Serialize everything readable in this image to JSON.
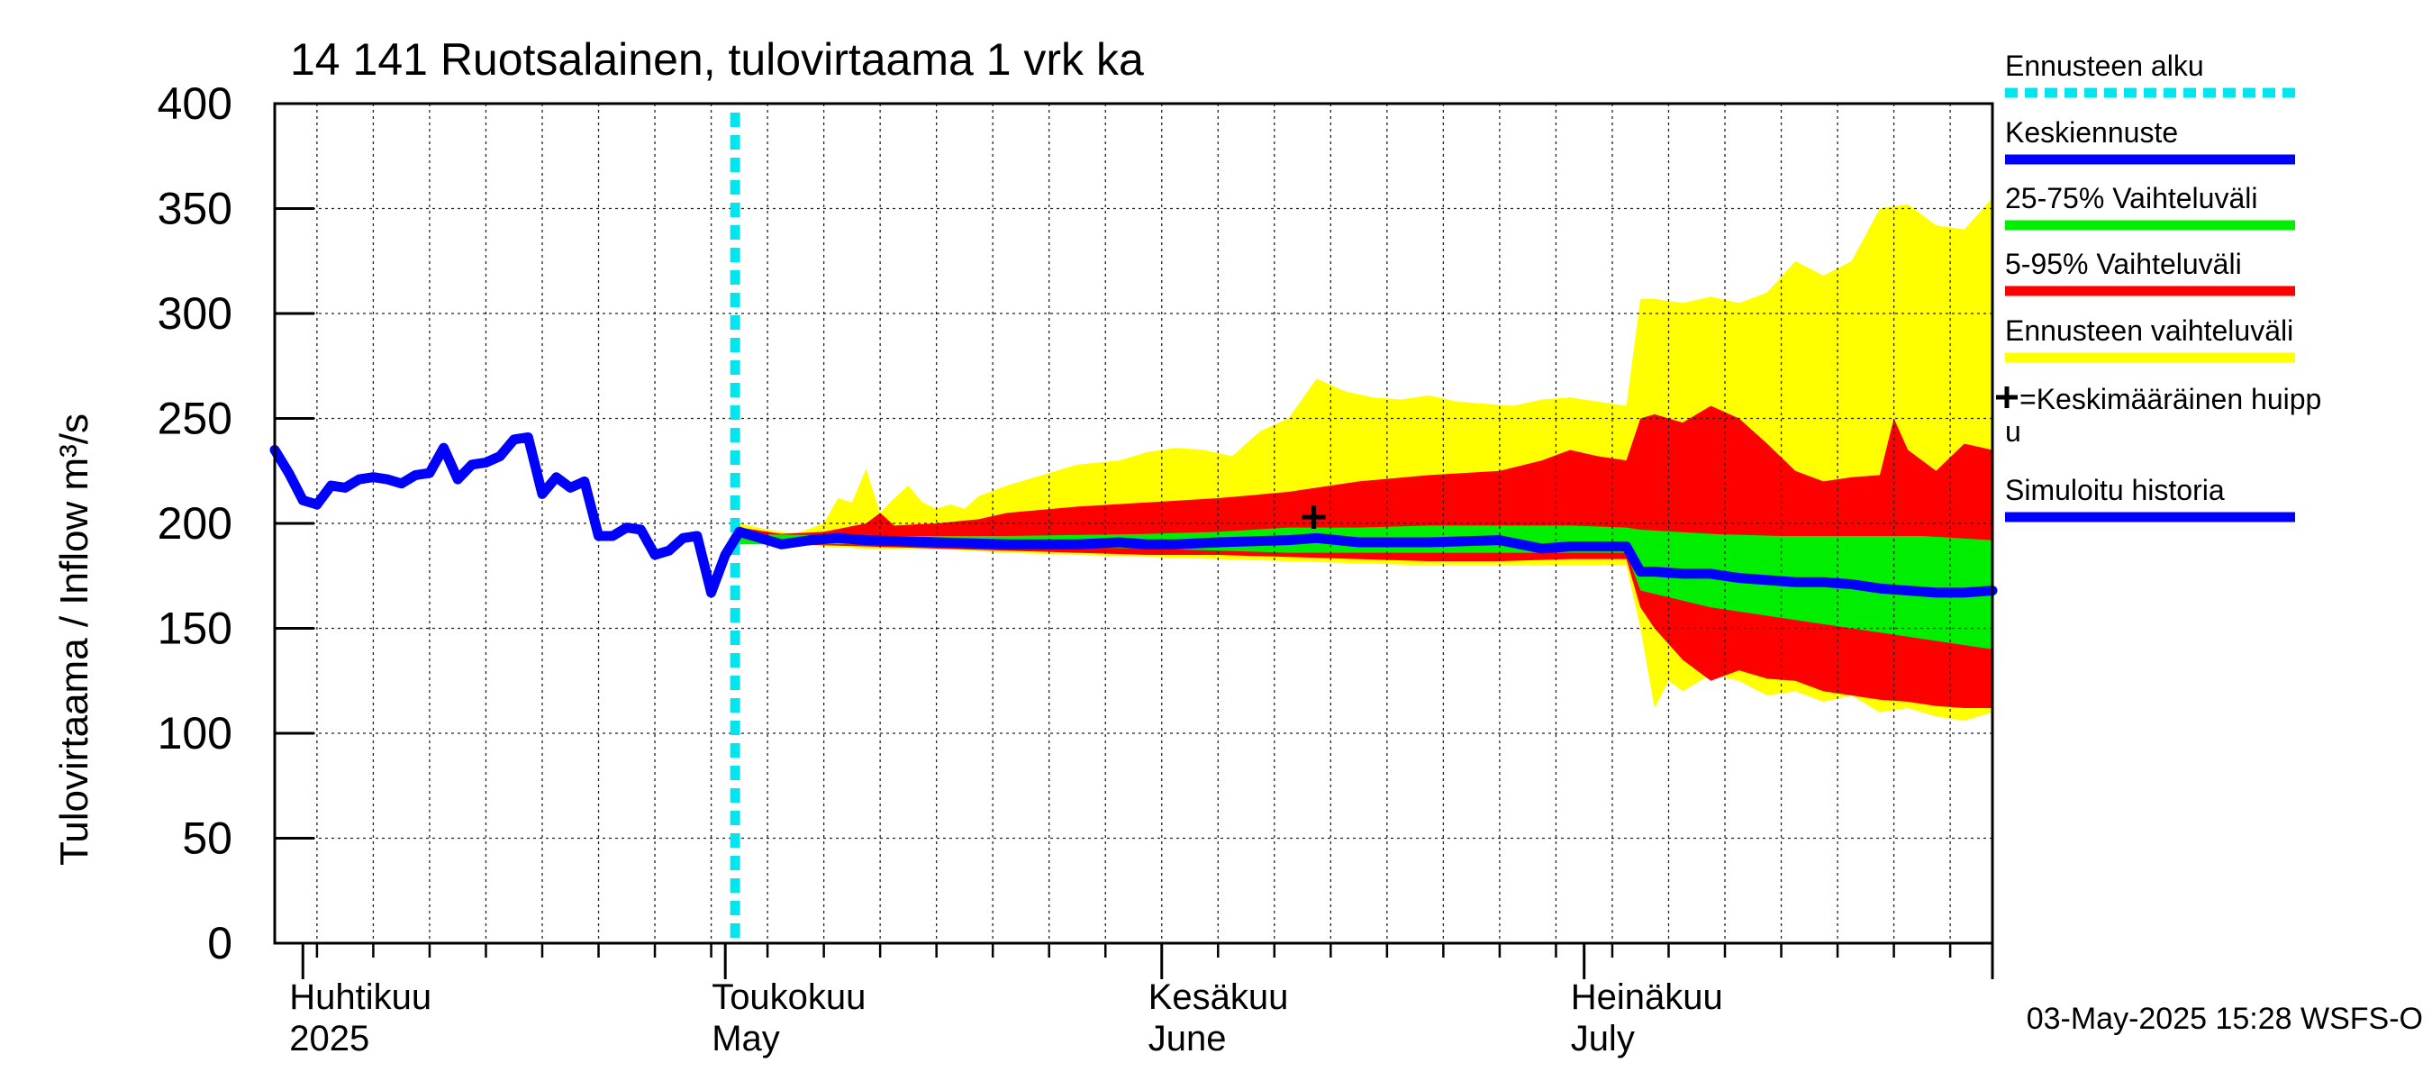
{
  "chart_data": {
    "type": "area",
    "title": "14 141 Ruotsalainen, tulovirtaama 1 vrk ka",
    "ylabel": "Tulovirtaama / Inflow    m³/s",
    "ylim": [
      0,
      400
    ],
    "yticks": [
      0,
      50,
      100,
      150,
      200,
      250,
      300,
      350,
      400
    ],
    "x_unit": "day index (0 = 1 April 2025)",
    "xlim": [
      -2,
      120
    ],
    "grid": true,
    "month_labels": [
      {
        "fi": "Huhtikuu",
        "en": "2025",
        "day": 0
      },
      {
        "fi": "Toukokuu",
        "en": "May",
        "day": 30
      },
      {
        "fi": "Kesäkuu",
        "en": "June",
        "day": 61
      },
      {
        "fi": "Heinäkuu",
        "en": "July",
        "day": 91
      }
    ],
    "month_boundaries": [
      0,
      30,
      61,
      91,
      120
    ],
    "forecast_start_day": 30.7,
    "legend_position": "right",
    "legend": [
      {
        "label": "Ennusteen alku",
        "color": "#00e5ee",
        "style": "dotted"
      },
      {
        "label": "Keskiennuste",
        "color": "#0000ff",
        "style": "solid"
      },
      {
        "label": "25-75% Vaihteluväli",
        "color": "#00ee00",
        "style": "solid"
      },
      {
        "label": "5-95% Vaihteluväli",
        "color": "#ff0000",
        "style": "solid"
      },
      {
        "label": "Ennusteen vaihteluväli",
        "color": "#ffff00",
        "style": "solid"
      },
      {
        "label": "=Keskimääräinen huipp",
        "label2": "u",
        "marker": "plus"
      },
      {
        "label": "Simuloitu historia",
        "color": "#0000ff",
        "style": "solid"
      }
    ],
    "mean_peak": {
      "day": 71.8,
      "value": 203
    },
    "series": [
      {
        "name": "Simuloitu historia",
        "color": "#0000ff",
        "x": [
          -2,
          -1,
          0,
          1,
          2,
          3,
          4,
          5,
          6,
          7,
          8,
          9,
          10,
          11,
          12,
          13,
          14,
          15,
          16,
          17,
          18,
          19,
          20,
          21,
          22,
          23,
          24,
          25,
          26,
          27,
          28,
          29,
          30,
          31
        ],
        "y": [
          235,
          224,
          211,
          209,
          218,
          217,
          221,
          222,
          221,
          219,
          223,
          224,
          236,
          221,
          228,
          229,
          232,
          240,
          241,
          214,
          222,
          217,
          220,
          194,
          194,
          198,
          197,
          185,
          187,
          193,
          194,
          167,
          185,
          196
        ]
      },
      {
        "name": "Ennusteen vaihteluväli (ylä)",
        "color": "#ffff00",
        "x": [
          31,
          33,
          35,
          37,
          38,
          39,
          40,
          41,
          42,
          43,
          44,
          45,
          46,
          47,
          48,
          50,
          52,
          55,
          58,
          60,
          62,
          64,
          66,
          68,
          70,
          72,
          74,
          76,
          78,
          80,
          82,
          84,
          86,
          88,
          90,
          92,
          94,
          95,
          96,
          98,
          100,
          102,
          104,
          106,
          108,
          110,
          112,
          114,
          116,
          118,
          120
        ],
        "y": [
          200,
          197,
          195,
          200,
          212,
          210,
          226,
          205,
          212,
          218,
          210,
          207,
          209,
          207,
          213,
          218,
          222,
          228,
          230,
          234,
          236,
          235,
          232,
          244,
          250,
          269,
          263,
          260,
          259,
          261,
          258,
          257,
          256,
          259,
          260,
          258,
          256,
          307,
          307,
          305,
          308,
          305,
          310,
          325,
          318,
          325,
          350,
          352,
          342,
          340,
          355
        ]
      },
      {
        "name": "Ennusteen vaihteluväli (ala)",
        "color": "#ffff00",
        "x": [
          31,
          34,
          37,
          40,
          45,
          50,
          55,
          60,
          65,
          70,
          75,
          80,
          85,
          90,
          94,
          95,
          96,
          97,
          98,
          100,
          102,
          104,
          106,
          108,
          110,
          112,
          114,
          116,
          118,
          120
        ],
        "y": [
          195,
          190,
          189,
          188,
          188,
          186,
          185,
          184,
          183,
          182,
          181,
          180,
          180,
          180,
          180,
          150,
          112,
          125,
          120,
          128,
          125,
          118,
          120,
          115,
          118,
          110,
          112,
          108,
          106,
          110
        ]
      },
      {
        "name": "5-95% Vaihteluväli (ylä)",
        "color": "#ff0000",
        "x": [
          31,
          34,
          37,
          40,
          41,
          42,
          45,
          48,
          50,
          55,
          60,
          65,
          70,
          75,
          80,
          85,
          88,
          90,
          92,
          94,
          95,
          96,
          98,
          100,
          102,
          104,
          106,
          108,
          110,
          112,
          113,
          114,
          116,
          118,
          120
        ],
        "y": [
          198,
          195,
          196,
          200,
          205,
          199,
          200,
          202,
          205,
          208,
          210,
          212,
          215,
          220,
          223,
          225,
          230,
          235,
          232,
          230,
          250,
          252,
          248,
          256,
          250,
          238,
          225,
          220,
          222,
          223,
          250,
          235,
          225,
          238,
          235
        ]
      },
      {
        "name": "5-95% Vaihteluväli (ala)",
        "color": "#ff0000",
        "x": [
          31,
          35,
          40,
          45,
          50,
          55,
          60,
          65,
          70,
          75,
          80,
          85,
          90,
          94,
          95,
          96,
          98,
          100,
          102,
          104,
          106,
          108,
          110,
          112,
          114,
          116,
          118,
          120
        ],
        "y": [
          192,
          190,
          189,
          188,
          187,
          186,
          185,
          185,
          184,
          183,
          182,
          182,
          183,
          183,
          160,
          150,
          135,
          125,
          130,
          126,
          125,
          120,
          118,
          116,
          115,
          113,
          112,
          112
        ]
      },
      {
        "name": "25-75% Vaihteluväli (ylä)",
        "color": "#00ee00",
        "x": [
          31,
          40,
          50,
          60,
          65,
          70,
          75,
          80,
          85,
          90,
          94,
          95,
          100,
          105,
          110,
          115,
          120
        ],
        "y": [
          195,
          194,
          194,
          195,
          196,
          198,
          198,
          199,
          199,
          199,
          198,
          197,
          195,
          194,
          194,
          194,
          192
        ]
      },
      {
        "name": "25-75% Vaihteluväli (ala)",
        "color": "#00ee00",
        "x": [
          31,
          40,
          50,
          60,
          65,
          70,
          75,
          80,
          85,
          90,
          94,
          95,
          100,
          105,
          110,
          115,
          120
        ],
        "y": [
          190,
          190,
          189,
          188,
          187,
          186,
          186,
          186,
          186,
          186,
          186,
          168,
          160,
          155,
          150,
          145,
          140
        ]
      },
      {
        "name": "Keskiennuste",
        "color": "#0000ff",
        "x": [
          31,
          32,
          33,
          34,
          35,
          36,
          38,
          40,
          45,
          50,
          55,
          58,
          60,
          62,
          65,
          70,
          72,
          75,
          80,
          85,
          88,
          90,
          94,
          95,
          96,
          98,
          100,
          102,
          104,
          106,
          108,
          110,
          112,
          114,
          116,
          118,
          120
        ],
        "y": [
          196,
          194,
          192,
          190,
          191,
          192,
          193,
          192,
          191,
          190,
          190,
          191,
          190,
          190,
          191,
          192,
          193,
          191,
          191,
          192,
          188,
          189,
          189,
          177,
          177,
          176,
          176,
          174,
          173,
          172,
          172,
          171,
          169,
          168,
          167,
          167,
          168
        ]
      }
    ],
    "timestamp": "03-May-2025 15:28 WSFS-O"
  }
}
